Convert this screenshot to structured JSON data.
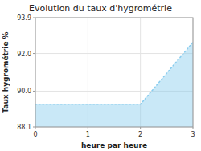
{
  "chart_data": {
    "type": "area",
    "title": "Evolution du taux d'hygrométrie",
    "x_label": "heure par heure",
    "y_label": "Taux hygrométrie %",
    "x": [
      0,
      2,
      3
    ],
    "values": [
      89.3,
      89.3,
      92.6
    ],
    "color": "#88ccee",
    "line_style": "dotted",
    "xlim": [
      0,
      3
    ],
    "ylim": [
      88.1,
      93.9
    ],
    "xticks": [
      0,
      1,
      2,
      3
    ],
    "yticks": [
      88.1,
      {
        "value": 90.0,
        "label": "90.0"
      },
      {
        "value": 92.0,
        "label": "92.0"
      },
      93.9
    ],
    "grid": true
  }
}
